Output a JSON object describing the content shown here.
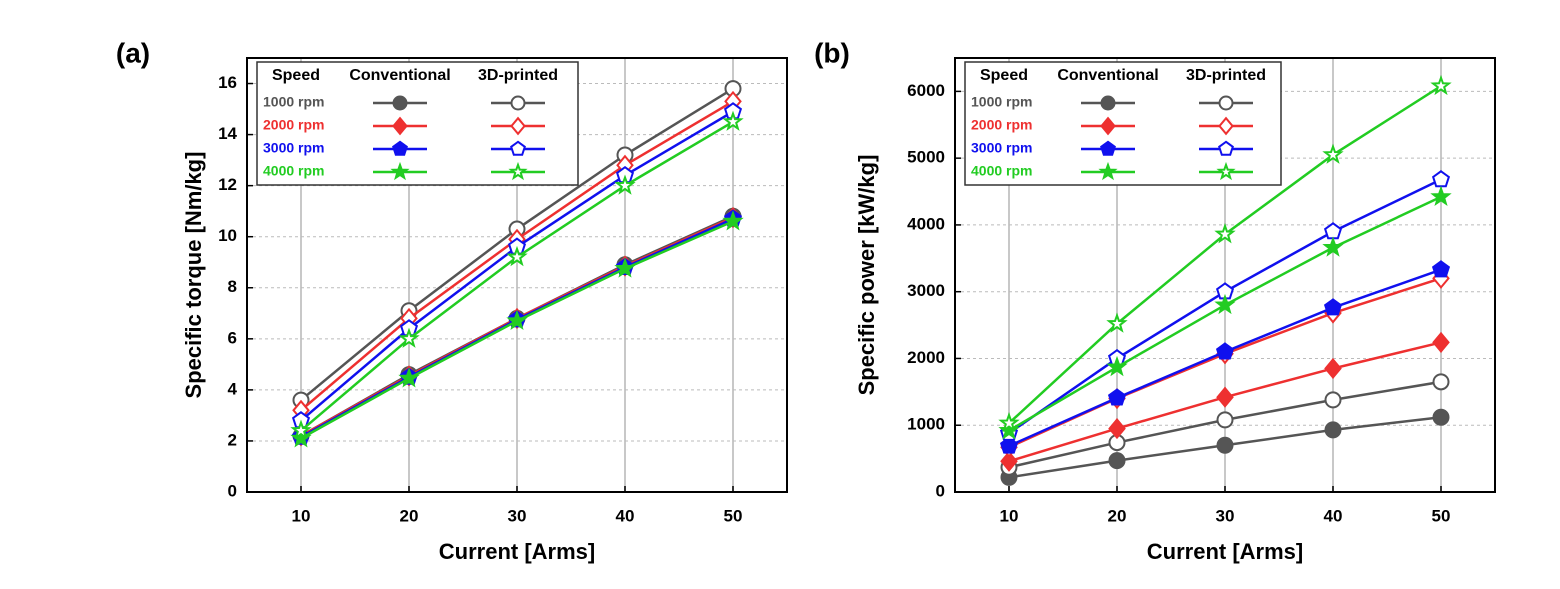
{
  "chart_data": [
    {
      "type": "line",
      "panel_label": "(a)",
      "x_label": "Current [Arms]",
      "y_label": "Specific torque [Nm/kg]",
      "x": [
        10,
        20,
        30,
        40,
        50
      ],
      "xlim": [
        5,
        55
      ],
      "xticks": [
        10,
        20,
        30,
        40,
        50
      ],
      "ylim": [
        0,
        17
      ],
      "yticks": [
        0,
        2,
        4,
        6,
        8,
        10,
        12,
        14,
        16
      ],
      "grid": true,
      "legend_title": "Speed",
      "columns": [
        "Conventional",
        "3D-printed"
      ],
      "marker_fill": [
        "filled",
        "open"
      ],
      "series": [
        {
          "name": "1000 rpm",
          "color": "#555555",
          "marker": "circle",
          "values": [
            [
              2.2,
              4.6,
              6.8,
              8.9,
              10.8
            ],
            [
              3.6,
              7.1,
              10.3,
              13.2,
              15.8
            ]
          ]
        },
        {
          "name": "2000 rpm",
          "color": "#ee3030",
          "marker": "diamond",
          "values": [
            [
              2.2,
              4.55,
              6.8,
              8.85,
              10.75
            ],
            [
              3.2,
              6.8,
              9.9,
              12.8,
              15.3
            ]
          ]
        },
        {
          "name": "3000 rpm",
          "color": "#1010ee",
          "marker": "pentagon",
          "values": [
            [
              2.15,
              4.5,
              6.75,
              8.8,
              10.7
            ],
            [
              2.8,
              6.4,
              9.6,
              12.4,
              14.9
            ]
          ]
        },
        {
          "name": "4000 rpm",
          "color": "#22cc22",
          "marker": "star",
          "values": [
            [
              2.1,
              4.45,
              6.7,
              8.75,
              10.6
            ],
            [
              2.4,
              6.0,
              9.2,
              12.0,
              14.5
            ]
          ]
        }
      ]
    },
    {
      "type": "line",
      "panel_label": "(b)",
      "x_label": "Current [Arms]",
      "y_label": "Specific power [kW/kg]",
      "x": [
        10,
        20,
        30,
        40,
        50
      ],
      "xlim": [
        5,
        55
      ],
      "xticks": [
        10,
        20,
        30,
        40,
        50
      ],
      "ylim": [
        0,
        6500
      ],
      "yticks": [
        0,
        1000,
        2000,
        3000,
        4000,
        5000,
        6000
      ],
      "grid": true,
      "legend_title": "Speed",
      "columns": [
        "Conventional",
        "3D-printed"
      ],
      "marker_fill": [
        "filled",
        "open"
      ],
      "series": [
        {
          "name": "1000 rpm",
          "color": "#555555",
          "marker": "circle",
          "values": [
            [
              220,
              470,
              700,
              930,
              1120
            ],
            [
              370,
              740,
              1080,
              1380,
              1650
            ]
          ]
        },
        {
          "name": "2000 rpm",
          "color": "#ee3030",
          "marker": "diamond",
          "values": [
            [
              460,
              950,
              1420,
              1850,
              2240
            ],
            [
              670,
              1400,
              2070,
              2680,
              3200
            ]
          ]
        },
        {
          "name": "3000 rpm",
          "color": "#1010ee",
          "marker": "pentagon",
          "values": [
            [
              690,
              1410,
              2100,
              2760,
              3330
            ],
            [
              880,
              2000,
              3000,
              3900,
              4680
            ]
          ]
        },
        {
          "name": "4000 rpm",
          "color": "#22cc22",
          "marker": "star",
          "values": [
            [
              920,
              1870,
              2800,
              3660,
              4420
            ],
            [
              1030,
              2520,
              3860,
              5050,
              6080
            ]
          ]
        }
      ]
    }
  ]
}
